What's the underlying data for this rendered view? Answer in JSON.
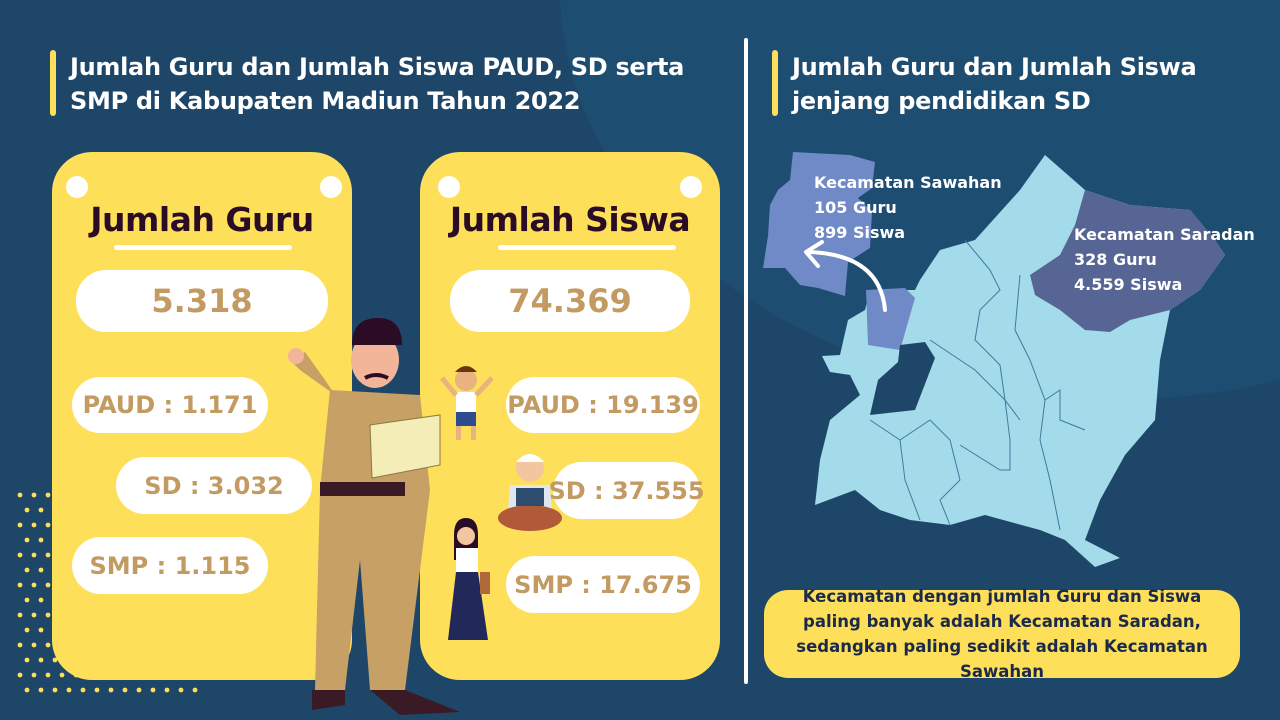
{
  "colors": {
    "background": "#1d4669",
    "card": "#fddf5a",
    "value_text": "#c29a62",
    "map_region": "#a4dbeb",
    "sawahan": "#6f8ac7",
    "saradan": "#566594"
  },
  "left": {
    "title_line1": "Jumlah Guru dan Jumlah Siswa PAUD, SD serta",
    "title_line2": "SMP di Kabupaten Madiun Tahun 2022",
    "guru": {
      "heading": "Jumlah Guru",
      "total": "5.318",
      "paud": "PAUD : 1.171",
      "sd": "SD : 3.032",
      "smp": "SMP : 1.115"
    },
    "siswa": {
      "heading": "Jumlah Siswa",
      "total": "74.369",
      "paud": "PAUD : 19.139",
      "sd": "SD : 37.555",
      "smp": "SMP : 17.675"
    }
  },
  "right": {
    "title_line1": "Jumlah Guru dan Jumlah Siswa",
    "title_line2": "jenjang pendidikan SD",
    "sawahan": {
      "name": "Kecamatan Sawahan",
      "guru": "105 Guru",
      "siswa": "899 Siswa"
    },
    "saradan": {
      "name": "Kecamatan Saradan",
      "guru": "328 Guru",
      "siswa": "4.559 Siswa"
    },
    "note": "Kecamatan dengan jumlah Guru dan Siswa paling banyak adalah Kecamatan Saradan, sedangkan paling sedikit adalah Kecamatan Sawahan"
  }
}
